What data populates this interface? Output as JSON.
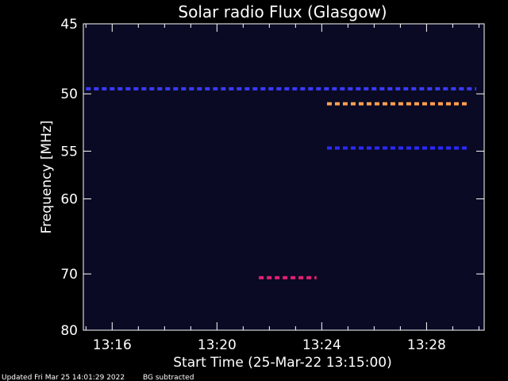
{
  "chart_data": {
    "type": "heatmap",
    "title": "Solar radio Flux (Glasgow)",
    "xlabel": "Start Time (25-Mar-22 13:15:00)",
    "ylabel": "Frequency [MHz]",
    "x_ticks": [
      "13:16",
      "13:20",
      "13:24",
      "13:28"
    ],
    "x_tick_minutes": [
      16,
      20,
      24,
      28
    ],
    "x_range_minutes": [
      14.9,
      30.2
    ],
    "y_ticks": [
      45,
      50,
      55,
      60,
      70,
      80
    ],
    "y_range": [
      45,
      80
    ],
    "y_scale": "reciprocal",
    "background_color": "#0a0a24",
    "features": [
      {
        "t_start": 15.0,
        "t_end": 29.9,
        "freq": 49.6,
        "color": "#3a3aff",
        "kind": "dashed"
      },
      {
        "t_start": 24.2,
        "t_end": 29.6,
        "freq": 50.8,
        "color": "#ffa050",
        "kind": "dashed"
      },
      {
        "t_start": 24.2,
        "t_end": 29.6,
        "freq": 54.7,
        "color": "#2a2aff",
        "kind": "dashed"
      },
      {
        "t_start": 21.6,
        "t_end": 23.8,
        "freq": 70.6,
        "color": "#e02070",
        "kind": "dashed"
      }
    ]
  },
  "footer": {
    "updated": "Updated Fri Mar 25 14:01:29 2022",
    "note": "BG subtracted"
  }
}
